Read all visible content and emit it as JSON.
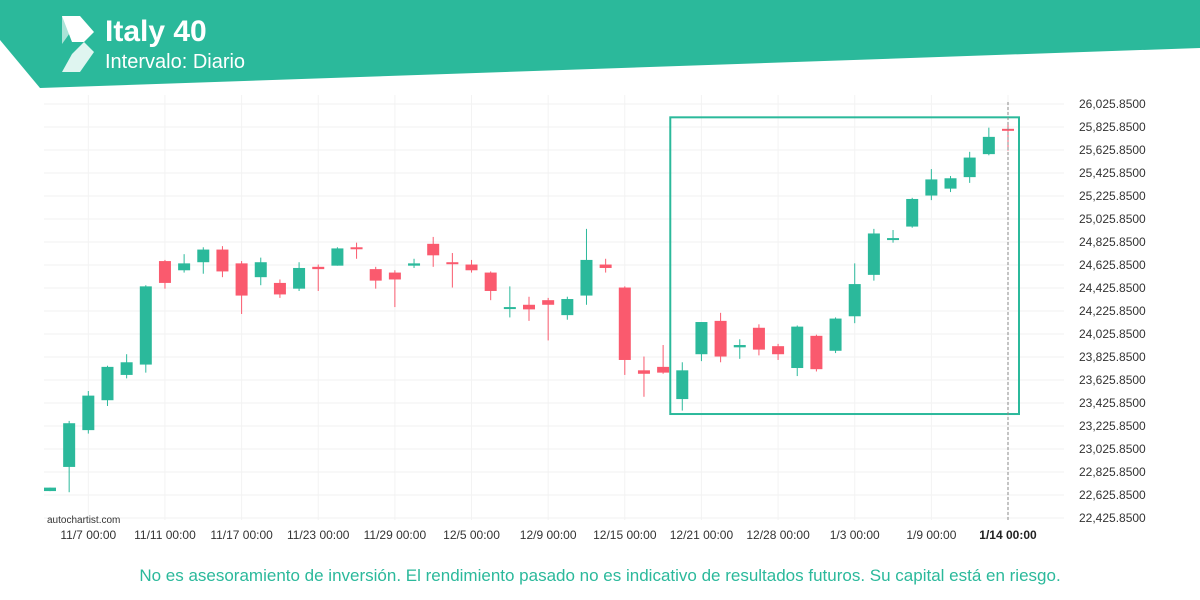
{
  "header": {
    "title": "Italy 40",
    "subtitle": "Intervalo: Diario",
    "brand_color": "#2bb99b"
  },
  "watermark": "autochartist.com",
  "footer": {
    "disclaimer": "No es asesoramiento de inversión. El rendimiento pasado no es indicativo de resultados futuros. Su capital está en riesgo."
  },
  "chart_data": {
    "type": "candlestick",
    "colors": {
      "up": "#2bb99b",
      "down": "#fa5a6e",
      "highlight_box": "#2bb99b"
    },
    "grid": true,
    "y_axis_position": "right",
    "ylim": [
      22350,
      26100
    ],
    "y_ticks": [
      "26,025.8500",
      "25,825.8500",
      "25,625.8500",
      "25,425.8500",
      "25,225.8500",
      "25,025.8500",
      "24,825.8500",
      "24,625.8500",
      "24,425.8500",
      "24,225.8500",
      "24,025.8500",
      "23,825.8500",
      "23,625.8500",
      "23,425.8500",
      "23,225.8500",
      "23,025.8500",
      "22,825.8500",
      "22,625.8500",
      "22,425.8500"
    ],
    "x_ticks": [
      "11/7 00:00",
      "11/11 00:00",
      "11/17 00:00",
      "11/23 00:00",
      "11/29 00:00",
      "12/5 00:00",
      "12/9 00:00",
      "12/15 00:00",
      "12/21 00:00",
      "12/28 00:00",
      "1/3 00:00",
      "1/9 00:00",
      "1/14 00:00"
    ],
    "x_tick_candle_index": [
      2,
      6,
      10,
      14,
      18,
      22,
      26,
      30,
      34,
      38,
      42,
      46,
      50
    ],
    "highlighted_x_tick": "1/14 00:00",
    "candles": [
      {
        "o": 22660,
        "h": 22690,
        "l": 22660,
        "c": 22690
      },
      {
        "o": 22870,
        "h": 23270,
        "l": 22650,
        "c": 23250
      },
      {
        "o": 23190,
        "h": 23530,
        "l": 23160,
        "c": 23490
      },
      {
        "o": 23450,
        "h": 23750,
        "l": 23400,
        "c": 23740
      },
      {
        "o": 23670,
        "h": 23850,
        "l": 23640,
        "c": 23780
      },
      {
        "o": 23760,
        "h": 24450,
        "l": 23690,
        "c": 24440
      },
      {
        "o": 24660,
        "h": 24670,
        "l": 24420,
        "c": 24470
      },
      {
        "o": 24580,
        "h": 24720,
        "l": 24560,
        "c": 24640
      },
      {
        "o": 24650,
        "h": 24780,
        "l": 24550,
        "c": 24760
      },
      {
        "o": 24760,
        "h": 24790,
        "l": 24520,
        "c": 24570
      },
      {
        "o": 24640,
        "h": 24660,
        "l": 24200,
        "c": 24360
      },
      {
        "o": 24520,
        "h": 24690,
        "l": 24450,
        "c": 24650
      },
      {
        "o": 24470,
        "h": 24500,
        "l": 24340,
        "c": 24370
      },
      {
        "o": 24420,
        "h": 24650,
        "l": 24400,
        "c": 24600
      },
      {
        "o": 24610,
        "h": 24630,
        "l": 24400,
        "c": 24590
      },
      {
        "o": 24620,
        "h": 24780,
        "l": 24620,
        "c": 24770
      },
      {
        "o": 24780,
        "h": 24820,
        "l": 24680,
        "c": 24770
      },
      {
        "o": 24590,
        "h": 24610,
        "l": 24420,
        "c": 24490
      },
      {
        "o": 24560,
        "h": 24580,
        "l": 24260,
        "c": 24500
      },
      {
        "o": 24620,
        "h": 24680,
        "l": 24600,
        "c": 24640
      },
      {
        "o": 24810,
        "h": 24870,
        "l": 24610,
        "c": 24710
      },
      {
        "o": 24650,
        "h": 24730,
        "l": 24430,
        "c": 24640
      },
      {
        "o": 24630,
        "h": 24670,
        "l": 24560,
        "c": 24580
      },
      {
        "o": 24560,
        "h": 24570,
        "l": 24320,
        "c": 24400
      },
      {
        "o": 24250,
        "h": 24440,
        "l": 24170,
        "c": 24260
      },
      {
        "o": 24280,
        "h": 24350,
        "l": 24140,
        "c": 24240
      },
      {
        "o": 24320,
        "h": 24340,
        "l": 23970,
        "c": 24280
      },
      {
        "o": 24190,
        "h": 24350,
        "l": 24150,
        "c": 24330
      },
      {
        "o": 24360,
        "h": 24940,
        "l": 24280,
        "c": 24670
      },
      {
        "o": 24630,
        "h": 24680,
        "l": 24560,
        "c": 24600
      },
      {
        "o": 24430,
        "h": 24440,
        "l": 23670,
        "c": 23800
      },
      {
        "o": 23710,
        "h": 23830,
        "l": 23480,
        "c": 23680
      },
      {
        "o": 23740,
        "h": 23930,
        "l": 23680,
        "c": 23690
      },
      {
        "o": 23460,
        "h": 23780,
        "l": 23360,
        "c": 23710
      },
      {
        "o": 23850,
        "h": 24130,
        "l": 23790,
        "c": 24130
      },
      {
        "o": 24140,
        "h": 24210,
        "l": 23780,
        "c": 23830
      },
      {
        "o": 23910,
        "h": 23980,
        "l": 23810,
        "c": 23930
      },
      {
        "o": 24080,
        "h": 24110,
        "l": 23840,
        "c": 23890
      },
      {
        "o": 23920,
        "h": 23940,
        "l": 23800,
        "c": 23850
      },
      {
        "o": 23730,
        "h": 24100,
        "l": 23660,
        "c": 24090
      },
      {
        "o": 24010,
        "h": 24020,
        "l": 23700,
        "c": 23720
      },
      {
        "o": 23880,
        "h": 24170,
        "l": 23860,
        "c": 24160
      },
      {
        "o": 24180,
        "h": 24640,
        "l": 24120,
        "c": 24460
      },
      {
        "o": 24540,
        "h": 24940,
        "l": 24490,
        "c": 24900
      },
      {
        "o": 24860,
        "h": 24930,
        "l": 24820,
        "c": 24860
      },
      {
        "o": 24960,
        "h": 25210,
        "l": 24950,
        "c": 25200
      },
      {
        "o": 25230,
        "h": 25460,
        "l": 25190,
        "c": 25370
      },
      {
        "o": 25290,
        "h": 25400,
        "l": 25260,
        "c": 25380
      },
      {
        "o": 25390,
        "h": 25610,
        "l": 25340,
        "c": 25560
      },
      {
        "o": 25590,
        "h": 25820,
        "l": 25580,
        "c": 25740
      },
      {
        "o": 25810,
        "h": 25850,
        "l": 25620,
        "c": 25800
      }
    ],
    "highlight_box": {
      "from_candle": 33,
      "to_candle": 50,
      "low": 23330,
      "high": 25910
    }
  }
}
